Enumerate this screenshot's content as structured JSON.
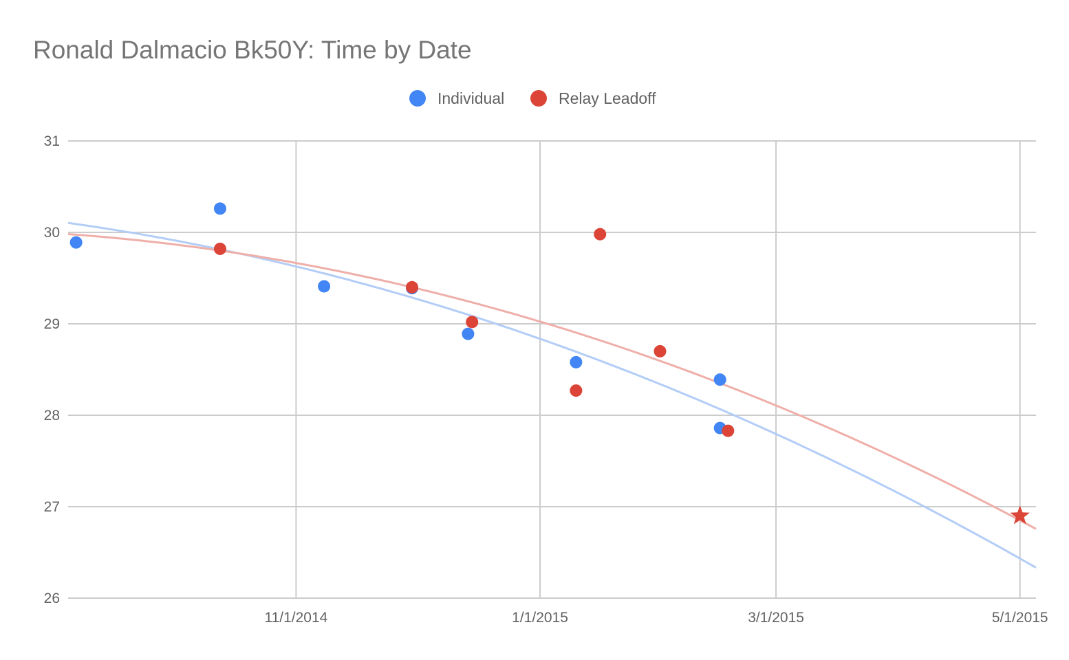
{
  "chart_data": {
    "type": "scatter",
    "title": "Ronald Dalmacio Bk50Y: Time by Date",
    "xlabel": "",
    "ylabel": "",
    "xlim": [
      "2014-09-05",
      "2015-05-05"
    ],
    "ylim": [
      26,
      31
    ],
    "x_ticks": [
      "11/1/2014",
      "1/1/2015",
      "3/1/2015",
      "5/1/2015"
    ],
    "y_ticks": [
      26,
      27,
      28,
      29,
      30,
      31
    ],
    "grid": true,
    "legend_position": "top",
    "series": [
      {
        "name": "Individual",
        "color": "#4285f4",
        "trendline_color": "#b3cdf7",
        "points": [
          {
            "x": "2014-09-07",
            "y": 29.89
          },
          {
            "x": "2014-10-13",
            "y": 30.26
          },
          {
            "x": "2014-11-08",
            "y": 29.41
          },
          {
            "x": "2014-11-30",
            "y": 29.39
          },
          {
            "x": "2014-12-14",
            "y": 28.89
          },
          {
            "x": "2015-01-10",
            "y": 28.58
          },
          {
            "x": "2015-02-15",
            "y": 28.39
          },
          {
            "x": "2015-02-15",
            "y": 27.86
          }
        ]
      },
      {
        "name": "Relay Leadoff",
        "color": "#db4437",
        "trendline_color": "#efafa9",
        "points": [
          {
            "x": "2014-10-13",
            "y": 29.82
          },
          {
            "x": "2014-11-30",
            "y": 29.4
          },
          {
            "x": "2014-12-15",
            "y": 29.02
          },
          {
            "x": "2015-01-10",
            "y": 28.27
          },
          {
            "x": "2015-01-16",
            "y": 29.98
          },
          {
            "x": "2015-01-31",
            "y": 28.7
          },
          {
            "x": "2015-02-17",
            "y": 27.83
          }
        ],
        "projected_point": {
          "x": "2015-05-01",
          "y": 26.9,
          "marker": "star"
        }
      }
    ]
  }
}
